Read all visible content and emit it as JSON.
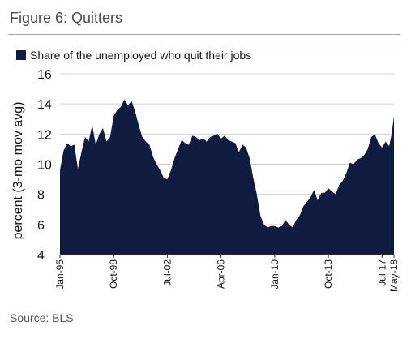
{
  "figure_title": "Figure 6: Quitters",
  "source": "Source: BLS",
  "chart_data": {
    "type": "area",
    "title": "",
    "xlabel": "",
    "ylabel": "percent (3-mo mov avg)",
    "ylim": [
      4,
      16
    ],
    "yticks": [
      4,
      6,
      8,
      10,
      12,
      14,
      16
    ],
    "grid": true,
    "legend_position": "top-left",
    "x_start": "Jan-95",
    "x_end": "May-18",
    "x_tick_labels": [
      "Jan-95",
      "Oct-98",
      "Jul-02",
      "Apr-06",
      "Jan-10",
      "Oct-13",
      "Jul-17",
      "May-18"
    ],
    "series": [
      {
        "name": "Share of the unemployed who quit their jobs",
        "color": "#0f1c3f",
        "x": [
          "1995-01",
          "1995-04",
          "1995-07",
          "1995-10",
          "1996-01",
          "1996-04",
          "1996-07",
          "1996-10",
          "1997-01",
          "1997-04",
          "1997-07",
          "1997-10",
          "1998-01",
          "1998-04",
          "1998-07",
          "1998-10",
          "1999-01",
          "1999-04",
          "1999-07",
          "1999-10",
          "2000-01",
          "2000-04",
          "2000-07",
          "2000-10",
          "2001-01",
          "2001-04",
          "2001-07",
          "2001-10",
          "2002-01",
          "2002-04",
          "2002-07",
          "2002-10",
          "2003-01",
          "2003-04",
          "2003-07",
          "2003-10",
          "2004-01",
          "2004-04",
          "2004-07",
          "2004-10",
          "2005-01",
          "2005-04",
          "2005-07",
          "2005-10",
          "2006-01",
          "2006-04",
          "2006-07",
          "2006-10",
          "2007-01",
          "2007-04",
          "2007-07",
          "2007-10",
          "2008-01",
          "2008-04",
          "2008-07",
          "2008-10",
          "2009-01",
          "2009-04",
          "2009-07",
          "2009-10",
          "2010-01",
          "2010-04",
          "2010-07",
          "2010-10",
          "2011-01",
          "2011-04",
          "2011-07",
          "2011-10",
          "2012-01",
          "2012-04",
          "2012-07",
          "2012-10",
          "2013-01",
          "2013-04",
          "2013-07",
          "2013-10",
          "2014-01",
          "2014-04",
          "2014-07",
          "2014-10",
          "2015-01",
          "2015-04",
          "2015-07",
          "2015-10",
          "2016-01",
          "2016-04",
          "2016-07",
          "2016-10",
          "2017-01",
          "2017-04",
          "2017-07",
          "2017-10",
          "2018-01",
          "2018-03",
          "2018-05"
        ],
        "values": [
          9.6,
          10.9,
          11.4,
          11.2,
          11.3,
          9.7,
          10.8,
          11.8,
          11.5,
          12.6,
          11.3,
          12.0,
          12.4,
          11.5,
          11.8,
          13.2,
          13.6,
          13.8,
          14.3,
          13.9,
          14.2,
          13.5,
          12.6,
          11.8,
          11.5,
          11.3,
          10.5,
          10.0,
          9.6,
          9.1,
          9.0,
          9.6,
          10.4,
          11.0,
          11.6,
          11.4,
          11.3,
          11.9,
          11.8,
          11.6,
          11.7,
          11.5,
          11.8,
          11.9,
          12.0,
          11.7,
          11.9,
          11.6,
          11.5,
          11.4,
          10.8,
          11.3,
          11.1,
          10.4,
          9.1,
          8.0,
          6.6,
          6.0,
          5.8,
          5.9,
          5.9,
          5.8,
          5.9,
          6.3,
          6.0,
          5.8,
          6.3,
          6.6,
          7.2,
          7.5,
          7.8,
          8.3,
          7.6,
          8.1,
          8.1,
          8.4,
          8.2,
          8.0,
          8.6,
          8.9,
          9.4,
          10.1,
          10.0,
          10.3,
          10.4,
          10.6,
          11.0,
          11.8,
          12.0,
          11.4,
          11.1,
          11.5,
          11.2,
          12.0,
          13.2
        ]
      }
    ]
  }
}
